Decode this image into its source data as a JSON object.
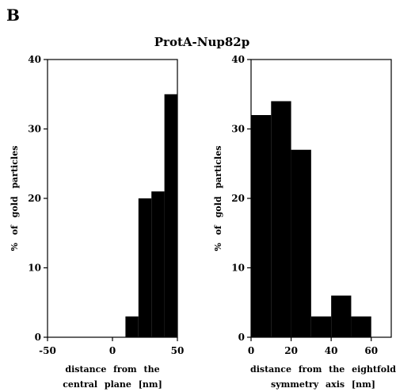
{
  "panel_label": "B",
  "figure_title": "ProtA-Nup82p",
  "colors": {
    "bar": "#000000",
    "axis": "#000000",
    "background": "#ffffff"
  },
  "chart_data": [
    {
      "type": "bar",
      "title": "",
      "ylabel": "% of gold particles",
      "xlabel_lines": [
        "distance from the",
        "central plane [nm]"
      ],
      "xlim": [
        -50,
        50
      ],
      "ylim": [
        0,
        40
      ],
      "xticks": [
        -50,
        0,
        50
      ],
      "yticks": [
        0,
        10,
        20,
        30,
        40
      ],
      "bin_width": 10,
      "bins": [
        {
          "start": 10,
          "end": 20,
          "value": 3
        },
        {
          "start": 20,
          "end": 30,
          "value": 20
        },
        {
          "start": 30,
          "end": 40,
          "value": 21
        },
        {
          "start": 40,
          "end": 50,
          "value": 35
        }
      ],
      "grid": false,
      "legend": "none"
    },
    {
      "type": "bar",
      "title": "",
      "ylabel": "% of gold particles",
      "xlabel_lines": [
        "distance from the eightfold",
        "symmetry axis [nm]"
      ],
      "xlim": [
        0,
        70
      ],
      "ylim": [
        0,
        40
      ],
      "xticks": [
        0,
        20,
        40,
        60
      ],
      "yticks": [
        0,
        10,
        20,
        30,
        40
      ],
      "bin_width": 10,
      "bins": [
        {
          "start": 0,
          "end": 10,
          "value": 32
        },
        {
          "start": 10,
          "end": 20,
          "value": 34
        },
        {
          "start": 20,
          "end": 30,
          "value": 27
        },
        {
          "start": 30,
          "end": 40,
          "value": 3
        },
        {
          "start": 40,
          "end": 50,
          "value": 6
        },
        {
          "start": 50,
          "end": 60,
          "value": 3
        }
      ],
      "grid": false,
      "legend": "none"
    }
  ]
}
